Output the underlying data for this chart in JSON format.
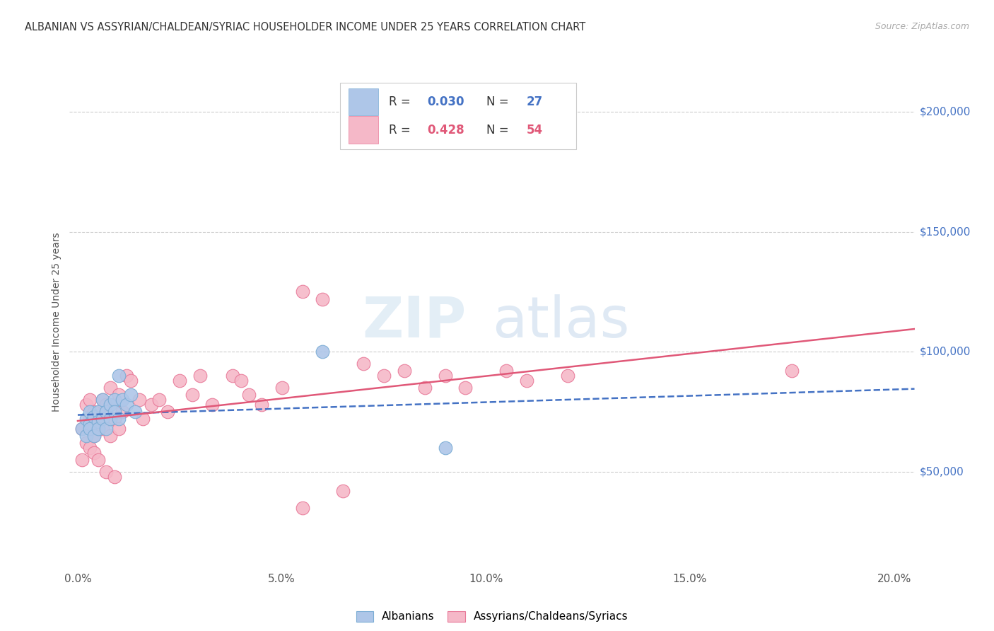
{
  "title": "ALBANIAN VS ASSYRIAN/CHALDEAN/SYRIAC HOUSEHOLDER INCOME UNDER 25 YEARS CORRELATION CHART",
  "source": "Source: ZipAtlas.com",
  "xlabel_ticks": [
    "0.0%",
    "5.0%",
    "10.0%",
    "15.0%",
    "20.0%"
  ],
  "xlabel_tick_vals": [
    0.0,
    0.05,
    0.1,
    0.15,
    0.2
  ],
  "ylabel_ticks": [
    "$50,000",
    "$100,000",
    "$150,000",
    "$200,000"
  ],
  "ylabel_tick_vals": [
    50000,
    100000,
    150000,
    200000
  ],
  "ylabel_label": "Householder Income Under 25 years",
  "xlim": [
    -0.002,
    0.205
  ],
  "ylim": [
    10000,
    215000
  ],
  "blue_color": "#aec6e8",
  "blue_edge": "#7aacd4",
  "pink_color": "#f5b8c8",
  "pink_edge": "#e87898",
  "blue_line_color": "#4472c4",
  "pink_line_color": "#e05878",
  "watermark_zip": "ZIP",
  "watermark_atlas": "atlas",
  "albanians_label": "Albanians",
  "assyrians_label": "Assyrians/Chaldeans/Syriacs",
  "legend_r1_prefix": "R = ",
  "legend_r1_val": "0.030",
  "legend_n1_prefix": "  N = ",
  "legend_n1_val": "27",
  "legend_r2_prefix": "R = ",
  "legend_r2_val": "0.428",
  "legend_n2_prefix": "  N = ",
  "legend_n2_val": "54",
  "blue_r_color": "#4472c4",
  "pink_r_color": "#e05878",
  "blue_x": [
    0.001,
    0.002,
    0.002,
    0.003,
    0.003,
    0.003,
    0.004,
    0.004,
    0.005,
    0.005,
    0.005,
    0.006,
    0.006,
    0.007,
    0.007,
    0.008,
    0.008,
    0.009,
    0.009,
    0.01,
    0.01,
    0.011,
    0.012,
    0.013,
    0.014,
    0.06,
    0.09
  ],
  "blue_y": [
    68000,
    72000,
    65000,
    75000,
    70000,
    68000,
    73000,
    65000,
    75000,
    71000,
    68000,
    80000,
    72000,
    75000,
    68000,
    78000,
    72000,
    80000,
    75000,
    90000,
    72000,
    80000,
    78000,
    82000,
    75000,
    100000,
    60000
  ],
  "pink_x": [
    0.001,
    0.001,
    0.002,
    0.002,
    0.003,
    0.003,
    0.003,
    0.004,
    0.004,
    0.004,
    0.005,
    0.005,
    0.005,
    0.006,
    0.006,
    0.007,
    0.007,
    0.008,
    0.008,
    0.009,
    0.009,
    0.01,
    0.01,
    0.011,
    0.012,
    0.013,
    0.015,
    0.016,
    0.018,
    0.02,
    0.022,
    0.025,
    0.028,
    0.03,
    0.033,
    0.038,
    0.04,
    0.042,
    0.045,
    0.05,
    0.055,
    0.06,
    0.065,
    0.07,
    0.075,
    0.08,
    0.085,
    0.09,
    0.095,
    0.105,
    0.11,
    0.12,
    0.055,
    0.175
  ],
  "pink_y": [
    68000,
    55000,
    78000,
    62000,
    80000,
    72000,
    60000,
    75000,
    65000,
    58000,
    72000,
    68000,
    55000,
    80000,
    68000,
    78000,
    50000,
    85000,
    65000,
    72000,
    48000,
    82000,
    68000,
    75000,
    90000,
    88000,
    80000,
    72000,
    78000,
    80000,
    75000,
    88000,
    82000,
    90000,
    78000,
    90000,
    88000,
    82000,
    78000,
    85000,
    125000,
    122000,
    42000,
    95000,
    90000,
    92000,
    85000,
    90000,
    85000,
    92000,
    88000,
    90000,
    35000,
    92000
  ]
}
